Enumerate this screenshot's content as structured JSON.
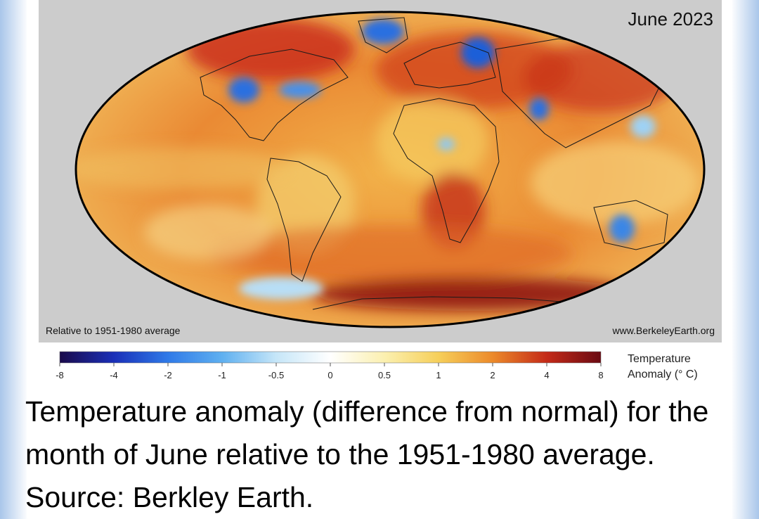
{
  "map": {
    "title": "June 2023",
    "note_left": "Relative to 1951-1980 average",
    "note_right": "www.BerkeleyEarth.org",
    "colors": {
      "background": "#cccccc",
      "deep_red": "#7a0a0a",
      "red": "#c8281a",
      "orange": "#e8762a",
      "yellow": "#f5cc60",
      "pale": "#f8efc8",
      "light_blue": "#9ed2f5",
      "blue": "#2a6fe0"
    }
  },
  "legend": {
    "title_line1": "Temperature",
    "title_line2": "Anomaly (° C)",
    "ticks": [
      "-8",
      "-4",
      "-2",
      "-1",
      "-0.5",
      "0",
      "0.5",
      "1",
      "2",
      "4",
      "8"
    ],
    "colors": [
      "#1a0a4a",
      "#1a2fb8",
      "#2f7ae8",
      "#5fb0f0",
      "#c6e6f8",
      "#ffffff",
      "#fbf0b0",
      "#f6cf5a",
      "#ec8a2a",
      "#c42a18",
      "#6a0a12"
    ]
  },
  "caption": {
    "text": "Temperature anomaly (difference from normal) for the month of June relative to the 1951-1980 average. Source: Berkley Earth."
  }
}
